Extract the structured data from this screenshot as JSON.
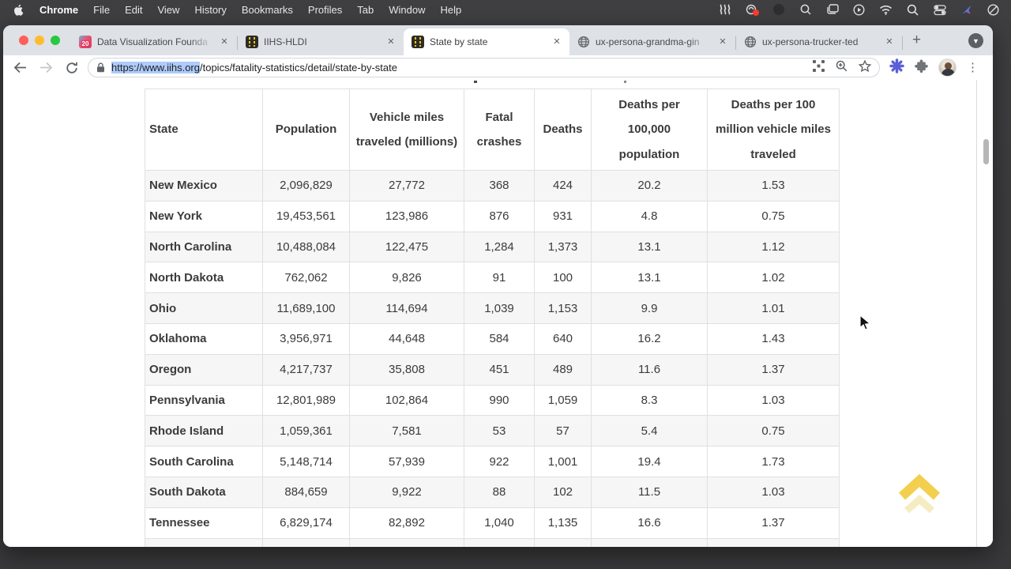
{
  "menu_bar": {
    "app_name": "Chrome",
    "items": [
      "File",
      "Edit",
      "View",
      "History",
      "Bookmarks",
      "Profiles",
      "Tab",
      "Window",
      "Help"
    ]
  },
  "tabs": [
    {
      "title": "Data Visualization Founda",
      "favicon": "dvs-20-badge",
      "favicon_label": "20"
    },
    {
      "title": "IIHS-HLDI",
      "favicon": "iihs-road"
    },
    {
      "title": "State by state",
      "favicon": "iihs-road",
      "active": true
    },
    {
      "title": "ux-persona-grandma-gin",
      "favicon": "globe"
    },
    {
      "title": "ux-persona-trucker-ted",
      "favicon": "globe"
    }
  ],
  "toolbar": {
    "url_selected": "https://www.iihs.org",
    "url_rest": "/topics/fatality-statistics/detail/state-by-state"
  },
  "icons": {
    "close": "✕",
    "new_tab": "+",
    "tab_search": "▼",
    "more_vert": "⋮"
  },
  "table": {
    "columns": [
      "State",
      "Population",
      "Vehicle miles traveled (millions)",
      "Fatal crashes",
      "Deaths",
      "Deaths per 100,000 population",
      "Deaths per 100 million vehicle miles traveled"
    ],
    "rows": [
      [
        "New Mexico",
        "2,096,829",
        "27,772",
        "368",
        "424",
        "20.2",
        "1.53"
      ],
      [
        "New York",
        "19,453,561",
        "123,986",
        "876",
        "931",
        "4.8",
        "0.75"
      ],
      [
        "North Carolina",
        "10,488,084",
        "122,475",
        "1,284",
        "1,373",
        "13.1",
        "1.12"
      ],
      [
        "North Dakota",
        "762,062",
        "9,826",
        "91",
        "100",
        "13.1",
        "1.02"
      ],
      [
        "Ohio",
        "11,689,100",
        "114,694",
        "1,039",
        "1,153",
        "9.9",
        "1.01"
      ],
      [
        "Oklahoma",
        "3,956,971",
        "44,648",
        "584",
        "640",
        "16.2",
        "1.43"
      ],
      [
        "Oregon",
        "4,217,737",
        "35,808",
        "451",
        "489",
        "11.6",
        "1.37"
      ],
      [
        "Pennsylvania",
        "12,801,989",
        "102,864",
        "990",
        "1,059",
        "8.3",
        "1.03"
      ],
      [
        "Rhode Island",
        "1,059,361",
        "7,581",
        "53",
        "57",
        "5.4",
        "0.75"
      ],
      [
        "South Carolina",
        "5,148,714",
        "57,939",
        "922",
        "1,001",
        "19.4",
        "1.73"
      ],
      [
        "South Dakota",
        "884,659",
        "9,922",
        "88",
        "102",
        "11.5",
        "1.03"
      ],
      [
        "Tennessee",
        "6,829,174",
        "82,892",
        "1,040",
        "1,135",
        "16.6",
        "1.37"
      ],
      [
        "",
        "",
        "",
        "",
        "",
        "",
        ""
      ]
    ]
  },
  "colors": {
    "accent_yellow": "#f2cf4e",
    "selection_blue": "#aecbfa",
    "tabstrip_gray": "#dee1e6"
  }
}
